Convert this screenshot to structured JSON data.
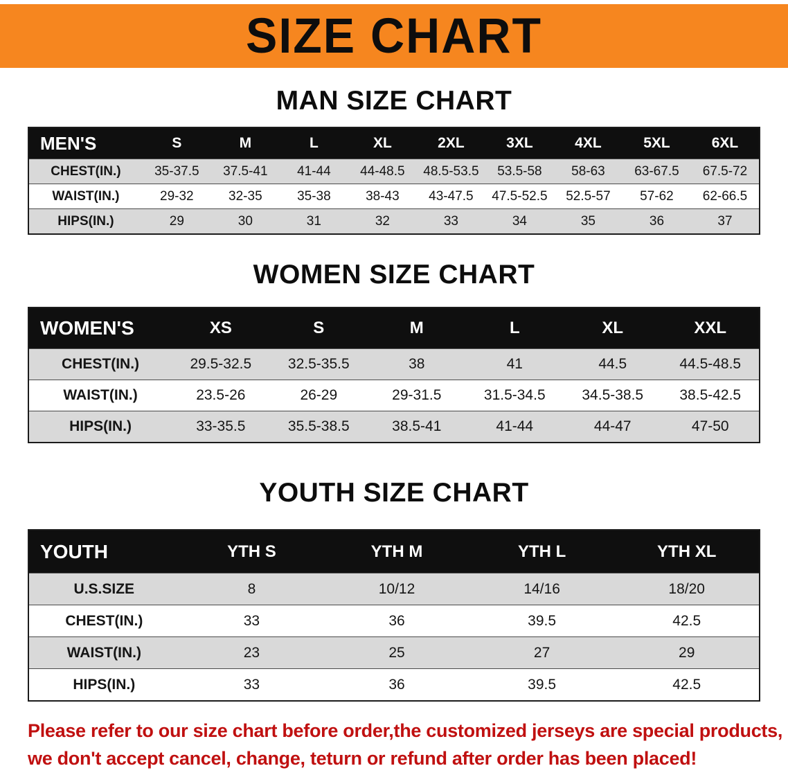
{
  "banner": {
    "title": "SIZE CHART",
    "bg_color": "#f6861f"
  },
  "sections": [
    {
      "title": "MAN SIZE CHART",
      "header_label": "MEN'S",
      "columns": [
        "S",
        "M",
        "L",
        "XL",
        "2XL",
        "3XL",
        "4XL",
        "5XL",
        "6XL"
      ],
      "rows": [
        {
          "label": "CHEST(IN.)",
          "values": [
            "35-37.5",
            "37.5-41",
            "41-44",
            "44-48.5",
            "48.5-53.5",
            "53.5-58",
            "58-63",
            "63-67.5",
            "67.5-72"
          ]
        },
        {
          "label": "WAIST(IN.)",
          "values": [
            "29-32",
            "32-35",
            "35-38",
            "38-43",
            "43-47.5",
            "47.5-52.5",
            "52.5-57",
            "57-62",
            "62-66.5"
          ]
        },
        {
          "label": "HIPS(IN.)",
          "values": [
            "29",
            "30",
            "31",
            "32",
            "33",
            "34",
            "35",
            "36",
            "37"
          ]
        }
      ]
    },
    {
      "title": "WOMEN SIZE CHART",
      "header_label": "WOMEN'S",
      "columns": [
        "XS",
        "S",
        "M",
        "L",
        "XL",
        "XXL"
      ],
      "rows": [
        {
          "label": "CHEST(IN.)",
          "values": [
            "29.5-32.5",
            "32.5-35.5",
            "38",
            "41",
            "44.5",
            "44.5-48.5"
          ]
        },
        {
          "label": "WAIST(IN.)",
          "values": [
            "23.5-26",
            "26-29",
            "29-31.5",
            "31.5-34.5",
            "34.5-38.5",
            "38.5-42.5"
          ]
        },
        {
          "label": "HIPS(IN.)",
          "values": [
            "33-35.5",
            "35.5-38.5",
            "38.5-41",
            "41-44",
            "44-47",
            "47-50"
          ]
        }
      ]
    },
    {
      "title": "YOUTH SIZE CHART",
      "header_label": "YOUTH",
      "columns": [
        "YTH S",
        "YTH M",
        "YTH L",
        "YTH XL"
      ],
      "rows": [
        {
          "label": "U.S.SIZE",
          "values": [
            "8",
            "10/12",
            "14/16",
            "18/20"
          ]
        },
        {
          "label": "CHEST(IN.)",
          "values": [
            "33",
            "36",
            "39.5",
            "42.5"
          ]
        },
        {
          "label": "WAIST(IN.)",
          "values": [
            "23",
            "25",
            "27",
            "29"
          ]
        },
        {
          "label": "HIPS(IN.)",
          "values": [
            "33",
            "36",
            "39.5",
            "42.5"
          ]
        }
      ]
    }
  ],
  "footer": {
    "line1": "Please refer to our size chart before order,the customized jerseys are special products,",
    "line2": "we don't accept cancel, change, teturn or refund after order has been placed!",
    "text_color": "#c01010"
  }
}
